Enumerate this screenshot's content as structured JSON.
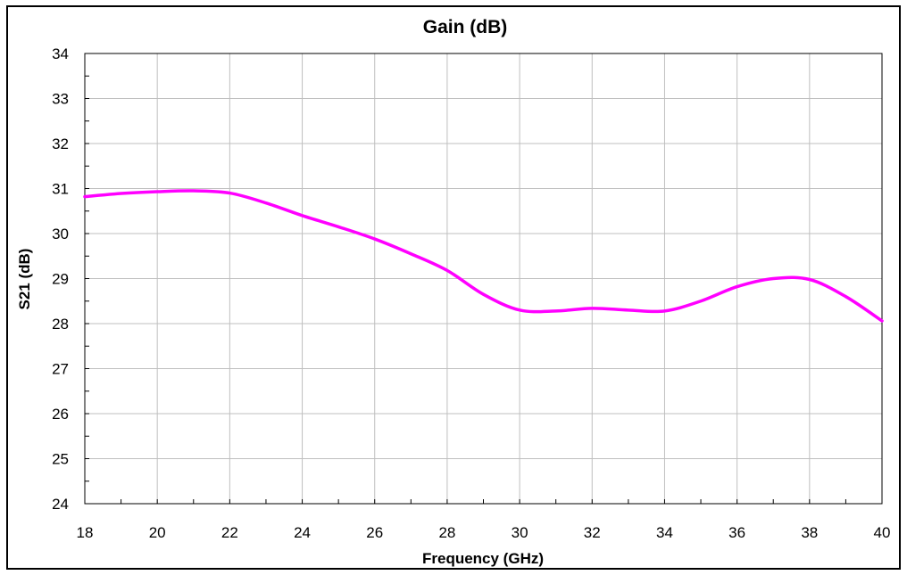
{
  "chart_data": {
    "type": "line",
    "title": "Gain (dB)",
    "xlabel": "Frequency (GHz)",
    "ylabel": "S21 (dB)",
    "xlim": [
      18,
      40
    ],
    "ylim": [
      24,
      34
    ],
    "x_ticks": [
      "18",
      "20",
      "22",
      "24",
      "26",
      "28",
      "30",
      "32",
      "34",
      "36",
      "38",
      "40"
    ],
    "y_ticks": [
      "24",
      "25",
      "26",
      "27",
      "28",
      "29",
      "30",
      "31",
      "32",
      "33",
      "34"
    ],
    "grid": true,
    "legend": "none",
    "series": [
      {
        "color": "#ff00ff",
        "x": [
          18,
          19,
          20,
          21,
          22,
          23,
          24,
          25,
          26,
          27,
          28,
          29,
          30,
          31,
          32,
          33,
          34,
          35,
          36,
          37,
          38,
          39,
          40
        ],
        "y": [
          30.82,
          30.89,
          30.93,
          30.95,
          30.9,
          30.68,
          30.4,
          30.15,
          29.88,
          29.55,
          29.18,
          28.65,
          28.3,
          28.28,
          28.34,
          28.3,
          28.28,
          28.5,
          28.82,
          29.0,
          28.98,
          28.6,
          28.06
        ]
      }
    ]
  }
}
